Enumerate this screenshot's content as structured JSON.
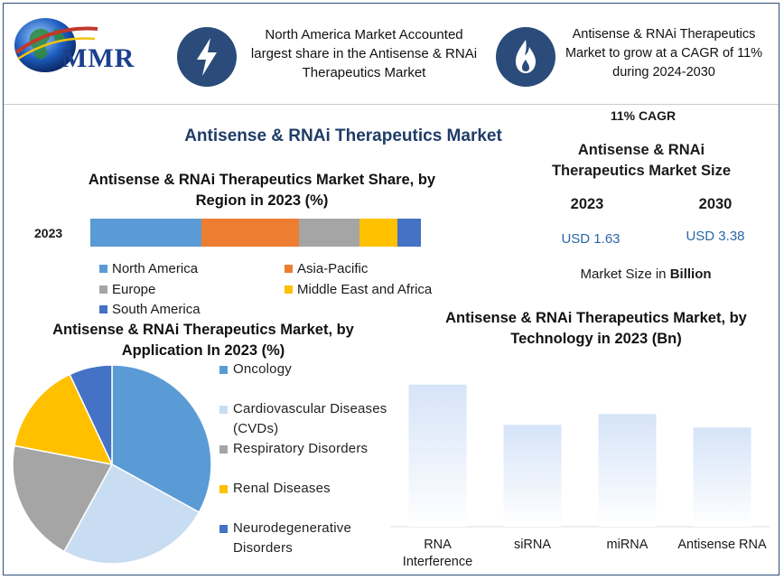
{
  "brand": {
    "logo_text": "MMR"
  },
  "header": {
    "left_text": "North America Market Accounted largest share in the Antisense & RNAi Therapeutics Market",
    "left_icon": "lightning-icon",
    "right_text": "Antisense & RNAi Therapeutics Market to grow at a CAGR of 11% during 2024-2030",
    "right_icon": "flame-icon"
  },
  "main_title": "Antisense & RNAi Therapeutics Market",
  "market_size": {
    "cagr": "11% CAGR",
    "title": "Antisense & RNAi Therapeutics Market Size",
    "year_a": "2023",
    "value_a": "USD 1.63",
    "year_b": "2030",
    "value_b": "USD 3.38",
    "unit_prefix": "Market Size in ",
    "unit_bold": "Billion"
  },
  "colors": {
    "north_america": "#5b9bd5",
    "asia_pacific": "#ed7d31",
    "europe": "#a5a5a5",
    "mea": "#ffc000",
    "south_america": "#4472c4",
    "tech_bar_top": "#d6e4f8"
  },
  "chart_data": [
    {
      "type": "bar",
      "stacked": true,
      "orientation": "horizontal",
      "title": "Antisense & RNAi Therapeutics Market Share, by Region in 2023 (%)",
      "categories": [
        "2023"
      ],
      "series": [
        {
          "name": "North America",
          "values": [
            33.5
          ]
        },
        {
          "name": "Asia-Pacific",
          "values": [
            29.5
          ]
        },
        {
          "name": "Europe",
          "values": [
            18.5
          ]
        },
        {
          "name": "Middle East and Africa",
          "values": [
            11.5
          ]
        },
        {
          "name": "South America",
          "values": [
            7
          ]
        }
      ],
      "legend": "bottom"
    },
    {
      "type": "pie",
      "title": "Antisense & RNAi Therapeutics Market, by Application In 2023 (%)",
      "labels": [
        "Oncology",
        "Cardiovascular Diseases (CVDs)",
        "Respiratory Disorders",
        "Renal Diseases",
        "Neurodegenerative Disorders"
      ],
      "values": [
        33,
        25,
        20,
        15,
        7
      ],
      "colors": [
        "#5b9bd5",
        "#c9ddf2",
        "#a5a5a5",
        "#ffc000",
        "#4472c4"
      ],
      "legend": "right"
    },
    {
      "type": "bar",
      "title": "Antisense & RNAi Therapeutics Market, by Technology in 2023 (Bn)",
      "categories": [
        "RNA Interference",
        "siRNA",
        "miRNA",
        "Antisense RNA"
      ],
      "values": [
        0.53,
        0.38,
        0.42,
        0.37
      ],
      "ylim": [
        0,
        0.6
      ],
      "grid": false,
      "legend": "none"
    }
  ]
}
